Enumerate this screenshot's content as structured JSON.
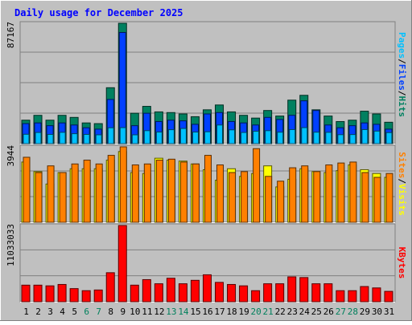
{
  "chart_data": {
    "type": "bar",
    "title": "Daily usage for December 2025",
    "days": [
      "1",
      "2",
      "3",
      "4",
      "5",
      "6",
      "7",
      "8",
      "9",
      "10",
      "11",
      "12",
      "13",
      "14",
      "15",
      "16",
      "17",
      "18",
      "19",
      "20",
      "21",
      "22",
      "23",
      "24",
      "25",
      "26",
      "27",
      "28",
      "29",
      "30",
      "31"
    ],
    "weekend_days": [
      "6",
      "7",
      "13",
      "14",
      "20",
      "21",
      "27",
      "28"
    ],
    "panels": [
      {
        "id": "hits",
        "max_label": "87167",
        "ymax": 87167,
        "legend": [
          {
            "label": "Pages",
            "color": "#00c0ff"
          },
          {
            "label": "Files",
            "color": "#0040ff"
          },
          {
            "label": "Hits",
            "color": "#008060"
          }
        ],
        "series": [
          {
            "name": "Hits",
            "color": "#008060",
            "values": [
              17000,
              20500,
              17000,
              20500,
              19000,
              15000,
              14500,
              40500,
              87167,
              22000,
              27000,
              23000,
              22500,
              21500,
              19500,
              24500,
              28000,
              23000,
              20500,
              18500,
              24000,
              20000,
              31500,
              35000,
              24500,
              20000,
              16000,
              17000,
              23500,
              21500,
              15500
            ]
          },
          {
            "name": "Files",
            "color": "#0040ff",
            "values": [
              14500,
              15000,
              13000,
              15000,
              13500,
              11500,
              10500,
              32000,
              80500,
              13000,
              22000,
              16000,
              17000,
              16500,
              14000,
              21500,
              22500,
              16000,
              15000,
              13500,
              19000,
              17500,
              20500,
              31000,
              24000,
              13500,
              11500,
              13000,
              15000,
              14000,
              10500
            ]
          },
          {
            "name": "Pages",
            "color": "#00c0ff",
            "values": [
              6800,
              8100,
              6700,
              8200,
              7200,
              6700,
              6400,
              11500,
              11600,
              6400,
              9400,
              8400,
              10100,
              11000,
              8400,
              8600,
              13500,
              10000,
              8100,
              9000,
              9400,
              8300,
              10200,
              11600,
              8300,
              8200,
              6500,
              6600,
              10200,
              9100,
              8000
            ]
          }
        ]
      },
      {
        "id": "visits",
        "max_label": "3944",
        "ymax": 3944,
        "legend": [
          {
            "label": "Sites",
            "color": "#ff8000"
          },
          {
            "label": "Visits",
            "color": "#ffff00"
          }
        ],
        "series": [
          {
            "name": "Visits",
            "color": "#ffff00",
            "values": [
              3150,
              2650,
              2000,
              2600,
              2800,
              2800,
              2800,
              3250,
              3700,
              2600,
              2550,
              3350,
              3250,
              3200,
              3050,
              2750,
              2200,
              2800,
              2400,
              2550,
              2950,
              1850,
              2250,
              2800,
              2650,
              2600,
              2700,
              3000,
              2750,
              2550,
              2350
            ]
          },
          {
            "name": "Sites",
            "color": "#ff8000",
            "values": [
              3400,
              2600,
              2950,
              2600,
              3050,
              3250,
              3050,
              3500,
              3944,
              3000,
              3050,
              3250,
              3300,
              3150,
              3050,
              3500,
              3000,
              2600,
              2650,
              3850,
              2400,
              2150,
              2850,
              2950,
              2650,
              3000,
              3100,
              3150,
              2600,
              2350,
              2550
            ]
          }
        ]
      },
      {
        "id": "kbytes",
        "max_label": "11033033",
        "ymax": 11033033,
        "legend": [
          {
            "label": "KBytes",
            "color": "#ff0000"
          }
        ],
        "series": [
          {
            "name": "KBytes",
            "color": "#ff0000",
            "values": [
              2400000,
              2400000,
              2300000,
              2500000,
              1900000,
              1600000,
              1700000,
              4200000,
              11033033,
              2400000,
              3200000,
              2600000,
              3400000,
              2600000,
              3100000,
              3900000,
              2800000,
              2500000,
              2300000,
              1600000,
              2600000,
              2600000,
              3600000,
              3500000,
              2600000,
              2600000,
              1600000,
              1600000,
              2200000,
              2000000,
              1500000
            ]
          }
        ]
      }
    ]
  }
}
